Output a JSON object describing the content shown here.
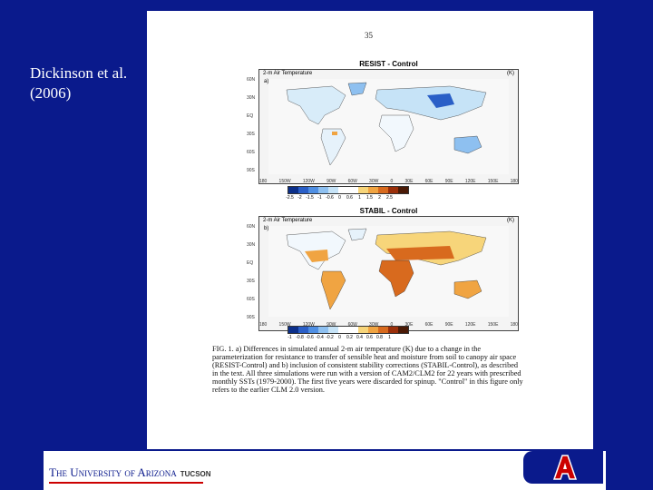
{
  "caption": {
    "line1": "Dickinson et al.",
    "line2": "(2006)"
  },
  "page_number": "35",
  "map1": {
    "title": "RESIST - Control",
    "subtitle": "2-m Air Temperature",
    "unit": "(K)",
    "panel": "a)",
    "lat_labels": [
      "90N",
      "60N",
      "30N",
      "EQ",
      "30S",
      "60S",
      "90S"
    ],
    "lon_labels": [
      "180",
      "150W",
      "120W",
      "90W",
      "60W",
      "30W",
      "0",
      "30E",
      "60E",
      "90E",
      "120E",
      "150E",
      "180"
    ],
    "colorbar_colors": [
      "#0b2f8a",
      "#2a5fc7",
      "#4f8fe3",
      "#8ec0f0",
      "#c6e3f7",
      "#ffffff",
      "#ffffff",
      "#f7d57a",
      "#f0a442",
      "#d86a1e",
      "#9a2f0a",
      "#4a1a06"
    ],
    "colorbar_labels": [
      "-2.5",
      "-2",
      "-1.5",
      "-1",
      "-0.6",
      "0",
      "0.6",
      "1",
      "1.5",
      "2",
      "2.5"
    ]
  },
  "map2": {
    "title": "STABIL - Control",
    "subtitle": "2-m Air Temperature",
    "unit": "(K)",
    "panel": "b)",
    "lat_labels": [
      "90N",
      "60N",
      "30N",
      "EQ",
      "30S",
      "60S",
      "90S"
    ],
    "lon_labels": [
      "180",
      "150W",
      "120W",
      "90W",
      "60W",
      "30W",
      "0",
      "30E",
      "60E",
      "90E",
      "120E",
      "150E",
      "180"
    ],
    "colorbar_colors": [
      "#0b2f8a",
      "#2a5fc7",
      "#4f8fe3",
      "#8ec0f0",
      "#c6e3f7",
      "#ffffff",
      "#ffffff",
      "#f7d57a",
      "#f0a442",
      "#d86a1e",
      "#9a2f0a",
      "#4a1a06"
    ],
    "colorbar_labels": [
      "-1",
      "-0.8",
      "-0.6",
      "-0.4",
      "-0.2",
      "0",
      "0.2",
      "0.4",
      "0.6",
      "0.8",
      "1"
    ]
  },
  "figure_caption": "FIG. 1. a) Differences in simulated annual 2-m air temperature (K) due to a change in the parameterization for resistance to transfer of sensible heat and moisture from soil to canopy air space (RESIST-Control) and b) inclusion of consistent stability corrections (STABIL-Control), as described in the text. All three simulations were run with a version of CAM2/CLM2 for 22 years with prescribed monthly SSTs (1979-2000). The first five years were discarded for spinup. \"Control\" in this figure only refers to the earlier CLM 2.0 version.",
  "footer": {
    "university": "The University of Arizona",
    "city": "TUCSON"
  },
  "colors": {
    "background": "#0a1a8c",
    "accent_red": "#c00000"
  }
}
